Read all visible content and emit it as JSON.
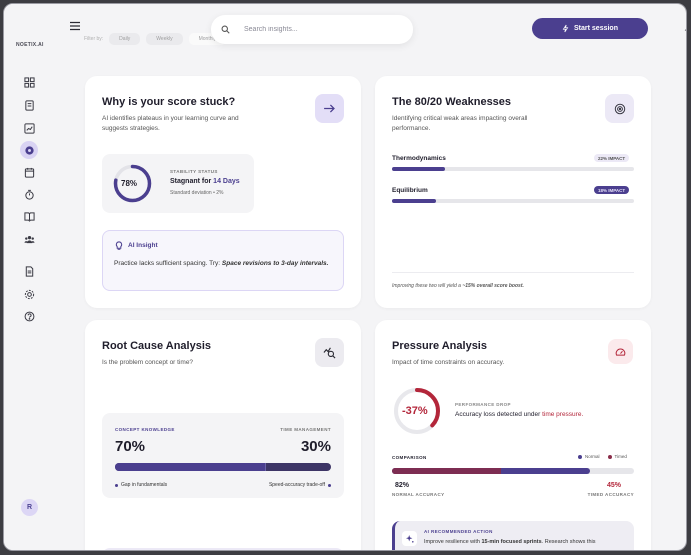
{
  "brand": {
    "logo_text": "NOETIX.AI"
  },
  "header": {
    "filter_label": "Filter by:",
    "filter_chips": [
      "Daily",
      "Weekly",
      "Monthly"
    ],
    "search_placeholder": "Search insights...",
    "start_label": "Start session"
  },
  "sidebar": {
    "items": [
      {
        "icon": "dashboard-icon"
      },
      {
        "icon": "notebook-icon"
      },
      {
        "icon": "analytics-icon"
      },
      {
        "icon": "insights-icon",
        "active": true
      },
      {
        "icon": "calendar-icon"
      },
      {
        "icon": "timer-icon"
      },
      {
        "icon": "library-icon"
      },
      {
        "icon": "community-icon"
      },
      {
        "icon": "document-icon"
      },
      {
        "icon": "settings-icon"
      },
      {
        "icon": "help-icon"
      }
    ],
    "avatar_initial": "R"
  },
  "stuck": {
    "title": "Why is your score stuck?",
    "subtitle": "AI identifies plateaus in your learning curve and suggests strategies.",
    "ring_value": 78,
    "ring_label": "78%",
    "status_caption": "STABILITY STATUS",
    "status_prefix": "Stagnant for ",
    "status_days": "14 Days",
    "deviation": "Standard deviation • 2%",
    "insight_title": "AI Insight",
    "insight_text": "Practice lacks sufficient spacing. Try: ",
    "insight_emph": "Space revisions to 3-day intervals."
  },
  "weak": {
    "title": "The 80/20 Weaknesses",
    "subtitle": "Identifying critical weak areas impacting overall performance.",
    "items": [
      {
        "name": "Thermodynamics",
        "impact": "22% IMPACT",
        "fraction": 0.22
      },
      {
        "name": "Equilibrium",
        "impact": "18% IMPACT",
        "fraction": 0.18
      }
    ],
    "footer_prefix": "Improving these two will yield a ",
    "footer_emph": "~15% overall score boost."
  },
  "root": {
    "title": "Root Cause Analysis",
    "subtitle": "Is the problem concept or time?",
    "concept_caption": "CONCEPT KNOWLEDGE",
    "concept_value": "70%",
    "time_caption": "TIME MANAGEMENT",
    "time_value": "30%",
    "split_fraction": 0.7,
    "left_legend": "Gap in fundamentals",
    "right_legend": "Speed-accuracy trade-off"
  },
  "pressure": {
    "title": "Pressure Analysis",
    "subtitle": "Impact of time constraints on accuracy.",
    "ring_label": "-37%",
    "ring_fraction": 0.37,
    "drop_caption": "PERFORMANCE DROP",
    "drop_prefix": "Accuracy loss detected under ",
    "drop_emph": "time pressure.",
    "comparison_caption": "COMPARISON",
    "legend_normal": "Normal",
    "legend_timed": "Timed",
    "normal_value": "82%",
    "normal_fraction": 0.82,
    "normal_caption": "NORMAL ACCURACY",
    "timed_value": "45%",
    "timed_fraction": 0.45,
    "timed_caption": "TIMED ACCURACY",
    "action_caption": "AI RECOMMENDED ACTION",
    "action_prefix": "Improve resilience with ",
    "action_emph": "15-min focused sprints",
    "action_suffix": ". Research shows this"
  },
  "colors": {
    "accent": "#4b3f8f",
    "danger": "#b3263a",
    "lavender": "#dcd6f5"
  }
}
